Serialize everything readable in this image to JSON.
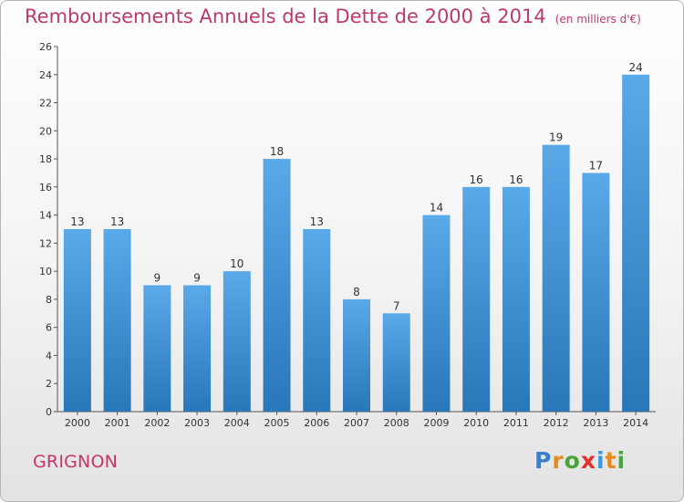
{
  "title": "Remboursements Annuels de la Dette de 2000 à 2014",
  "unit_note": "(en milliers d'€)",
  "commune": "GRIGNON",
  "logo": {
    "letters": [
      "P",
      "r",
      "o",
      "x",
      "i",
      "t",
      "i"
    ],
    "colors": [
      "#3a7fc8",
      "#e58a1f",
      "#4aa33b",
      "#e0312b",
      "#3a9ad8",
      "#e58a1f",
      "#4aa33b"
    ]
  },
  "chart_data": {
    "type": "bar",
    "categories": [
      "2000",
      "2001",
      "2002",
      "2003",
      "2004",
      "2005",
      "2006",
      "2007",
      "2008",
      "2009",
      "2010",
      "2011",
      "2012",
      "2013",
      "2014"
    ],
    "values": [
      13,
      13,
      9,
      9,
      10,
      18,
      13,
      8,
      7,
      14,
      16,
      16,
      19,
      17,
      24
    ],
    "ylim": [
      0,
      26
    ],
    "yticks": [
      0,
      2,
      4,
      6,
      8,
      10,
      12,
      14,
      16,
      18,
      20,
      22,
      24,
      26
    ],
    "bar_color_top": "#5aaaea",
    "bar_color_bottom": "#2777b9",
    "grid": false
  }
}
